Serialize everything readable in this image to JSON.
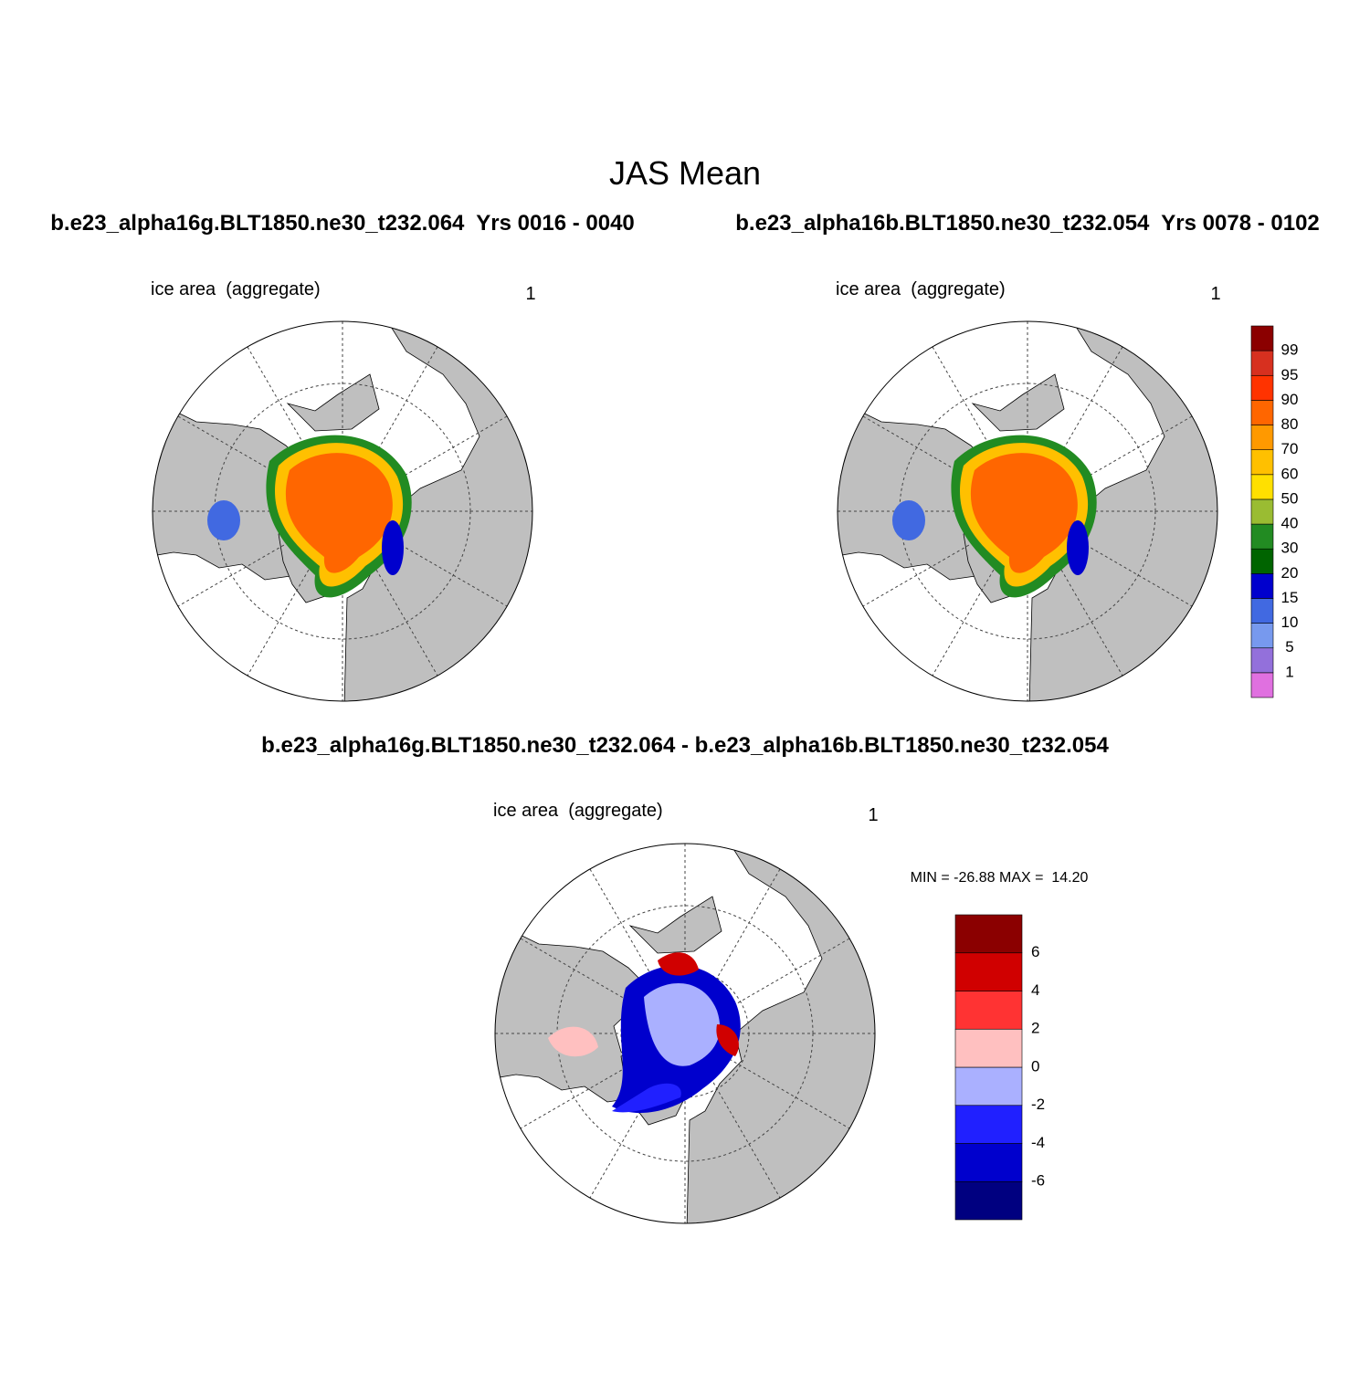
{
  "title": "JAS Mean",
  "panels": [
    {
      "caption": "b.e23_alpha16g.BLT1850.ne30_t232.064  Yrs 0016 - 0040",
      "label_left": "ice area  (aggregate)",
      "label_right": "1"
    },
    {
      "caption": "b.e23_alpha16b.BLT1850.ne30_t232.054  Yrs 0078 - 0102",
      "label_left": "ice area  (aggregate)",
      "label_right": "1"
    },
    {
      "caption": "b.e23_alpha16g.BLT1850.ne30_t232.064 - b.e23_alpha16b.BLT1850.ne30_t232.054",
      "label_left": "ice area  (aggregate)",
      "label_right": "1"
    }
  ],
  "colorbars": [
    {
      "levels": [
        1,
        5,
        10,
        15,
        20,
        30,
        40,
        50,
        60,
        70,
        80,
        90,
        95,
        99
      ],
      "colors": [
        "#e070e0",
        "#9370db",
        "#7799ee",
        "#4169e1",
        "#0000cd",
        "#006400",
        "#228b22",
        "#9abc32",
        "#ffe000",
        "#ffc000",
        "#ff9900",
        "#ff6600",
        "#ff3300",
        "#d7301f",
        "#8b0000"
      ]
    },
    {
      "levels": [
        -6,
        -4,
        -2,
        0,
        2,
        4,
        6
      ],
      "colors": [
        "#000080",
        "#0000cd",
        "#2020ff",
        "#aab0ff",
        "#ffc0c0",
        "#ff3333",
        "#d00000",
        "#8b0000"
      ]
    }
  ],
  "stats": "MIN = -26.88 MAX =  14.20"
}
